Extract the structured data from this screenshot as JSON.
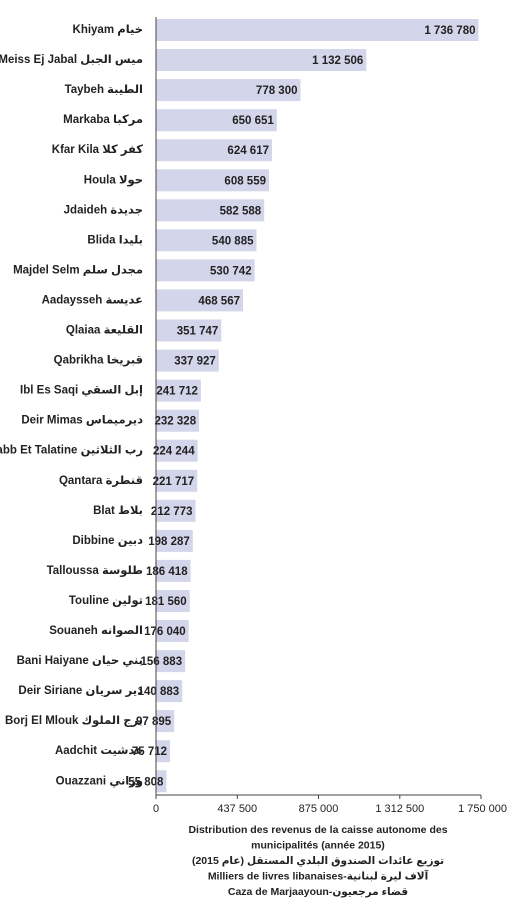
{
  "chart_data": {
    "type": "bar",
    "orientation": "horizontal",
    "categories": [
      "Khiyam خيام",
      "Meiss Ej Jabal ميس الجبل",
      "Taybeh الطيبة",
      "Markaba مركبا",
      "Kfar Kila كفر كلا",
      "Houla حولا",
      "Jdaideh جديدة",
      "Blida بليدا",
      "Majdel Selm مجدل سلم",
      "Aadaysseh عديسة",
      "Qlaiaa القليعة",
      "Qabrikha قبريخا",
      "Ibl Es Saqi إبل السقي",
      "Deir Mimas ديرميماس",
      "Rabb Et Talatine رب الثلاثين",
      "Qantara قنطرة",
      "Blat بلاط",
      "Dibbine دبين",
      "Talloussa طلوسة",
      "Touline تولين",
      "Souaneh الصوانه",
      "Bani Haiyane بني حيان",
      "Deir Siriane دير سريان",
      "Borj El Mlouk برج الملوك",
      "Aadchit عدشيت",
      "Ouazzani وزاني"
    ],
    "values": [
      1736780,
      1132506,
      778300,
      650651,
      624617,
      608559,
      582588,
      540885,
      530742,
      468567,
      351747,
      337927,
      241712,
      232328,
      224244,
      221717,
      212773,
      198287,
      186418,
      181560,
      176040,
      156883,
      140883,
      97895,
      75712,
      55808
    ],
    "value_labels": [
      "1 736 780",
      "1 132 506",
      "778 300",
      "650 651",
      "624 617",
      "608 559",
      "582 588",
      "540 885",
      "530 742",
      "468 567",
      "351 747",
      "337 927",
      "241 712",
      "232 328",
      "224 244",
      "221 717",
      "212 773",
      "198 287",
      "186 418",
      "181 560",
      "176 040",
      "156 883",
      "140 883",
      "97 895",
      "75 712",
      "55 808"
    ],
    "xlim": [
      0,
      1750000
    ],
    "xticks": [
      0,
      437500,
      875000,
      1312500,
      1750000
    ],
    "xtick_labels": [
      "0",
      "437 500",
      "875 000",
      "1 312 500",
      "1 750 000"
    ],
    "caption": [
      "Distribution des revenus de la caisse autonome des",
      "municipalités (année 2015)",
      "توزيع عائدات الصندوق البلدي المستقل (عام 2015)",
      "Milliers de livres libanaises-آلاف ليرة لبنانية",
      "Caza de Marjaayoun-قضاء مرجعيون"
    ],
    "grid": false,
    "legend": "none",
    "colors": {
      "bar": "#d3d5ea",
      "axis": "#444444",
      "text": "#222222"
    }
  }
}
